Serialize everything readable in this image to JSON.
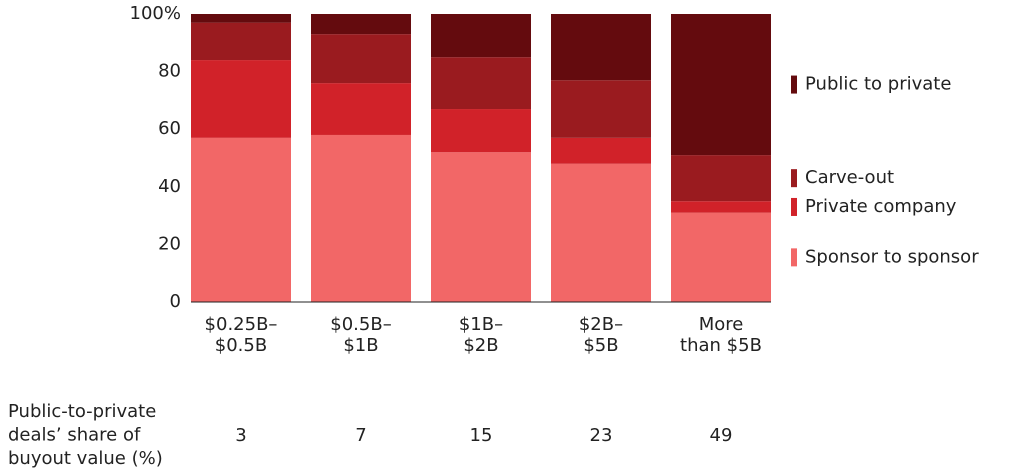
{
  "chart_data": {
    "type": "stacked_bar",
    "categories": [
      [
        "$0.25B–",
        "$0.5B"
      ],
      [
        "$0.5B–",
        "$1B"
      ],
      [
        "$1B–",
        "$2B"
      ],
      [
        "$2B–",
        "$5B"
      ],
      [
        "More",
        "than $5B"
      ]
    ],
    "series": [
      {
        "name": "Sponsor to sponsor",
        "color": "#f26767",
        "values": [
          57,
          58,
          52,
          48,
          31
        ]
      },
      {
        "name": "Private company",
        "color": "#d12229",
        "values": [
          27,
          18,
          15,
          9,
          4
        ]
      },
      {
        "name": "Carve-out",
        "color": "#9a1b1f",
        "values": [
          13,
          17,
          18,
          20,
          16
        ]
      },
      {
        "name": "Public to private",
        "color": "#640b0e",
        "values": [
          3,
          7,
          15,
          23,
          49
        ]
      }
    ],
    "ylim": [
      0,
      100
    ],
    "yticks": [
      0,
      20,
      40,
      60,
      80,
      {
        "value": 100,
        "label": "100%"
      }
    ],
    "share_row": {
      "label": [
        "Public-to-private",
        "deals’ share of",
        "buyout value (%)"
      ],
      "values": [
        3,
        7,
        15,
        23,
        49
      ]
    }
  }
}
